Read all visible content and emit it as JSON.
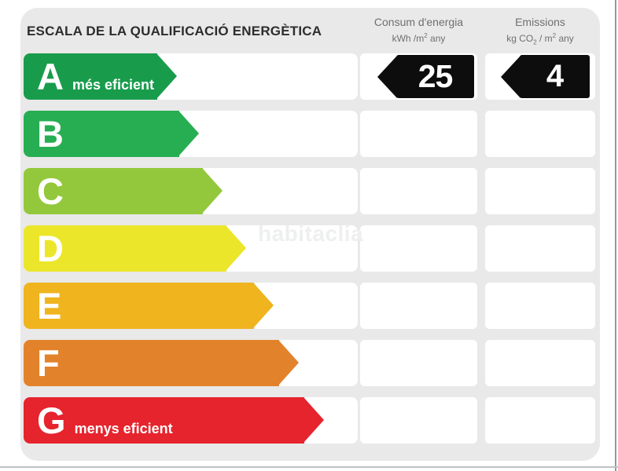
{
  "title": "ESCALA DE LA QUALIFICACIÓ ENERGÈTICA",
  "watermark": "habitaclia",
  "columns": {
    "consumption": {
      "title": "Consum d'energia",
      "unit": {
        "pre": "kWh /m",
        "sup": "2",
        "post": " any"
      }
    },
    "emissions": {
      "title": "Emissions",
      "unit": {
        "pre": "kg CO",
        "sub": "2",
        "mid": " / m",
        "sup": "2",
        "post": " any"
      }
    }
  },
  "scale": [
    {
      "letter": "A",
      "note": "més eficient",
      "color": "#189c4c",
      "style": "--c:#189c4c;--w:195px"
    },
    {
      "letter": "B",
      "note": "",
      "color": "#27ae52",
      "style": "--c:#27ae52;--w:223px"
    },
    {
      "letter": "C",
      "note": "",
      "color": "#93c83d",
      "style": "--c:#93c83d;--w:253px"
    },
    {
      "letter": "D",
      "note": "",
      "color": "#ece62b",
      "style": "--c:#ece62b;--w:283px"
    },
    {
      "letter": "E",
      "note": "",
      "color": "#efb41e",
      "style": "--c:#efb41e;--w:318px"
    },
    {
      "letter": "F",
      "note": "",
      "color": "#e2832c",
      "style": "--c:#e2832c;--w:350px"
    },
    {
      "letter": "G",
      "note": "menys eficient",
      "color": "#e6242d",
      "style": "--c:#e6242d;--w:382px"
    }
  ],
  "result": {
    "rating_row": "A",
    "consumption_value": "25",
    "emissions_value": "4",
    "arrow_color": "#0d0d0d"
  },
  "colors": {
    "panel_bg": "#e9e9e9",
    "cell_bg": "#ffffff",
    "title_text": "#2d2d2d",
    "header_text": "#6e6f71",
    "watermark_text": "#eeefef",
    "right_border": "#96989a",
    "bottom_border": "#bfc1c3"
  },
  "chart_data": {
    "type": "bar",
    "title": "ESCALA DE LA QUALIFICACIÓ ENERGÈTICA",
    "categories": [
      "A",
      "B",
      "C",
      "D",
      "E",
      "F",
      "G"
    ],
    "series": [
      {
        "name": "scale-wedge-relative-length-px",
        "values": [
          195,
          223,
          253,
          283,
          318,
          350,
          382
        ]
      }
    ],
    "category_colors": [
      "#189c4c",
      "#27ae52",
      "#93c83d",
      "#ece62b",
      "#efb41e",
      "#e2832c",
      "#e6242d"
    ],
    "annotations": [
      {
        "category": "A",
        "label": "més eficient"
      },
      {
        "category": "G",
        "label": "menys eficient"
      },
      {
        "category": "A",
        "consum_denergia_kwh_m2_any": 25,
        "emissions_kg_co2_m2_any": 4
      }
    ],
    "xlabel": "",
    "ylabel": "",
    "legend": [
      "Consum d'energia kWh /m2 any",
      "Emissions kg CO2 / m2 any"
    ]
  }
}
